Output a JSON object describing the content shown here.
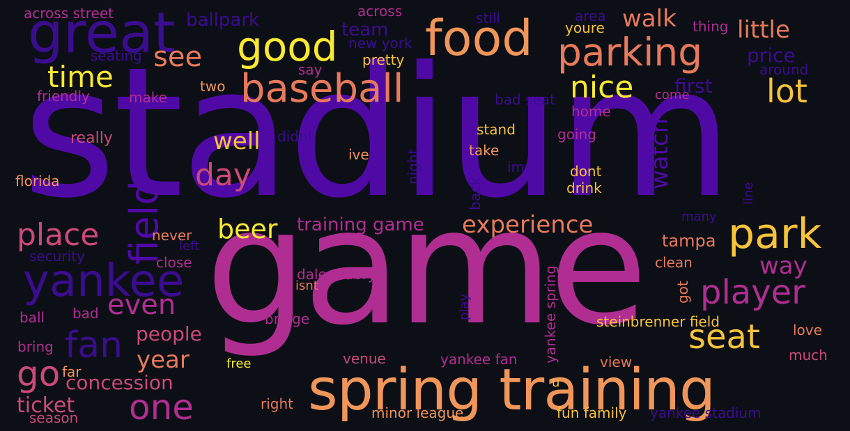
{
  "palette": {
    "background": "#0d0f16",
    "indigo": "#4f0aa6",
    "blue_violet": "#3a0d8f",
    "magenta": "#b02e92",
    "pink": "#cc4a78",
    "orange": "#f0965a",
    "coral": "#e87a5c",
    "yellow": "#f9ea31",
    "gold": "#f7c33a"
  },
  "words": {
    "stadium": "stadium",
    "game": "game",
    "spring_training": "spring training",
    "great": "great",
    "food": "food",
    "parking": "parking",
    "good": "good",
    "baseball": "baseball",
    "yankee": "yankee",
    "park": "park",
    "fan": "fan",
    "time": "time",
    "see": "see",
    "nice": "nice",
    "lot": "lot",
    "little": "little",
    "walk": "walk",
    "field": "field",
    "day": "day",
    "place": "place",
    "player": "player",
    "seat": "seat",
    "beer": "beer",
    "experience": "experience",
    "one": "one",
    "go": "go",
    "even": "even",
    "well": "well",
    "year": "year",
    "concession": "concession",
    "ticket": "ticket",
    "people": "people",
    "training_game": "training game",
    "watch": "watch",
    "way": "way",
    "tampa": "tampa",
    "first": "first",
    "price": "price",
    "team": "team",
    "ballpark": "ballpark",
    "across_street": "across street",
    "across": "across",
    "still": "still",
    "area": "area",
    "youre": "youre",
    "thing": "thing",
    "new_york": "new york",
    "seating": "seating",
    "pretty": "pretty",
    "say": "say",
    "around": "around",
    "friendly": "friendly",
    "make": "make",
    "two": "two",
    "bad_seat": "bad seat",
    "come": "come",
    "home": "home",
    "really": "really",
    "didnt": "didnt",
    "stand": "stand",
    "going": "going",
    "ive": "ive",
    "take": "take",
    "night": "night",
    "im": "im",
    "dont": "dont",
    "drink": "drink",
    "florida": "florida",
    "back": "back",
    "line": "line",
    "many": "many",
    "never": "never",
    "left": "left",
    "security": "security",
    "close": "close",
    "clean": "clean",
    "dale_mabry": "dale mabry",
    "isnt": "isnt",
    "yankee_spring": "yankee spring",
    "got": "got",
    "ball": "ball",
    "bad": "bad",
    "bridge": "bridge",
    "play": "play",
    "steinbrenner_field": "steinbrenner field",
    "love": "love",
    "bring": "bring",
    "far": "far",
    "free": "free",
    "venue": "venue",
    "yankee_fan": "yankee fan",
    "view": "view",
    "much": "much",
    "u": "u",
    "right": "right",
    "season": "season",
    "minor_league": "minor league",
    "fun_family": "fun family",
    "yankee_stadium": "yankee stadium"
  }
}
